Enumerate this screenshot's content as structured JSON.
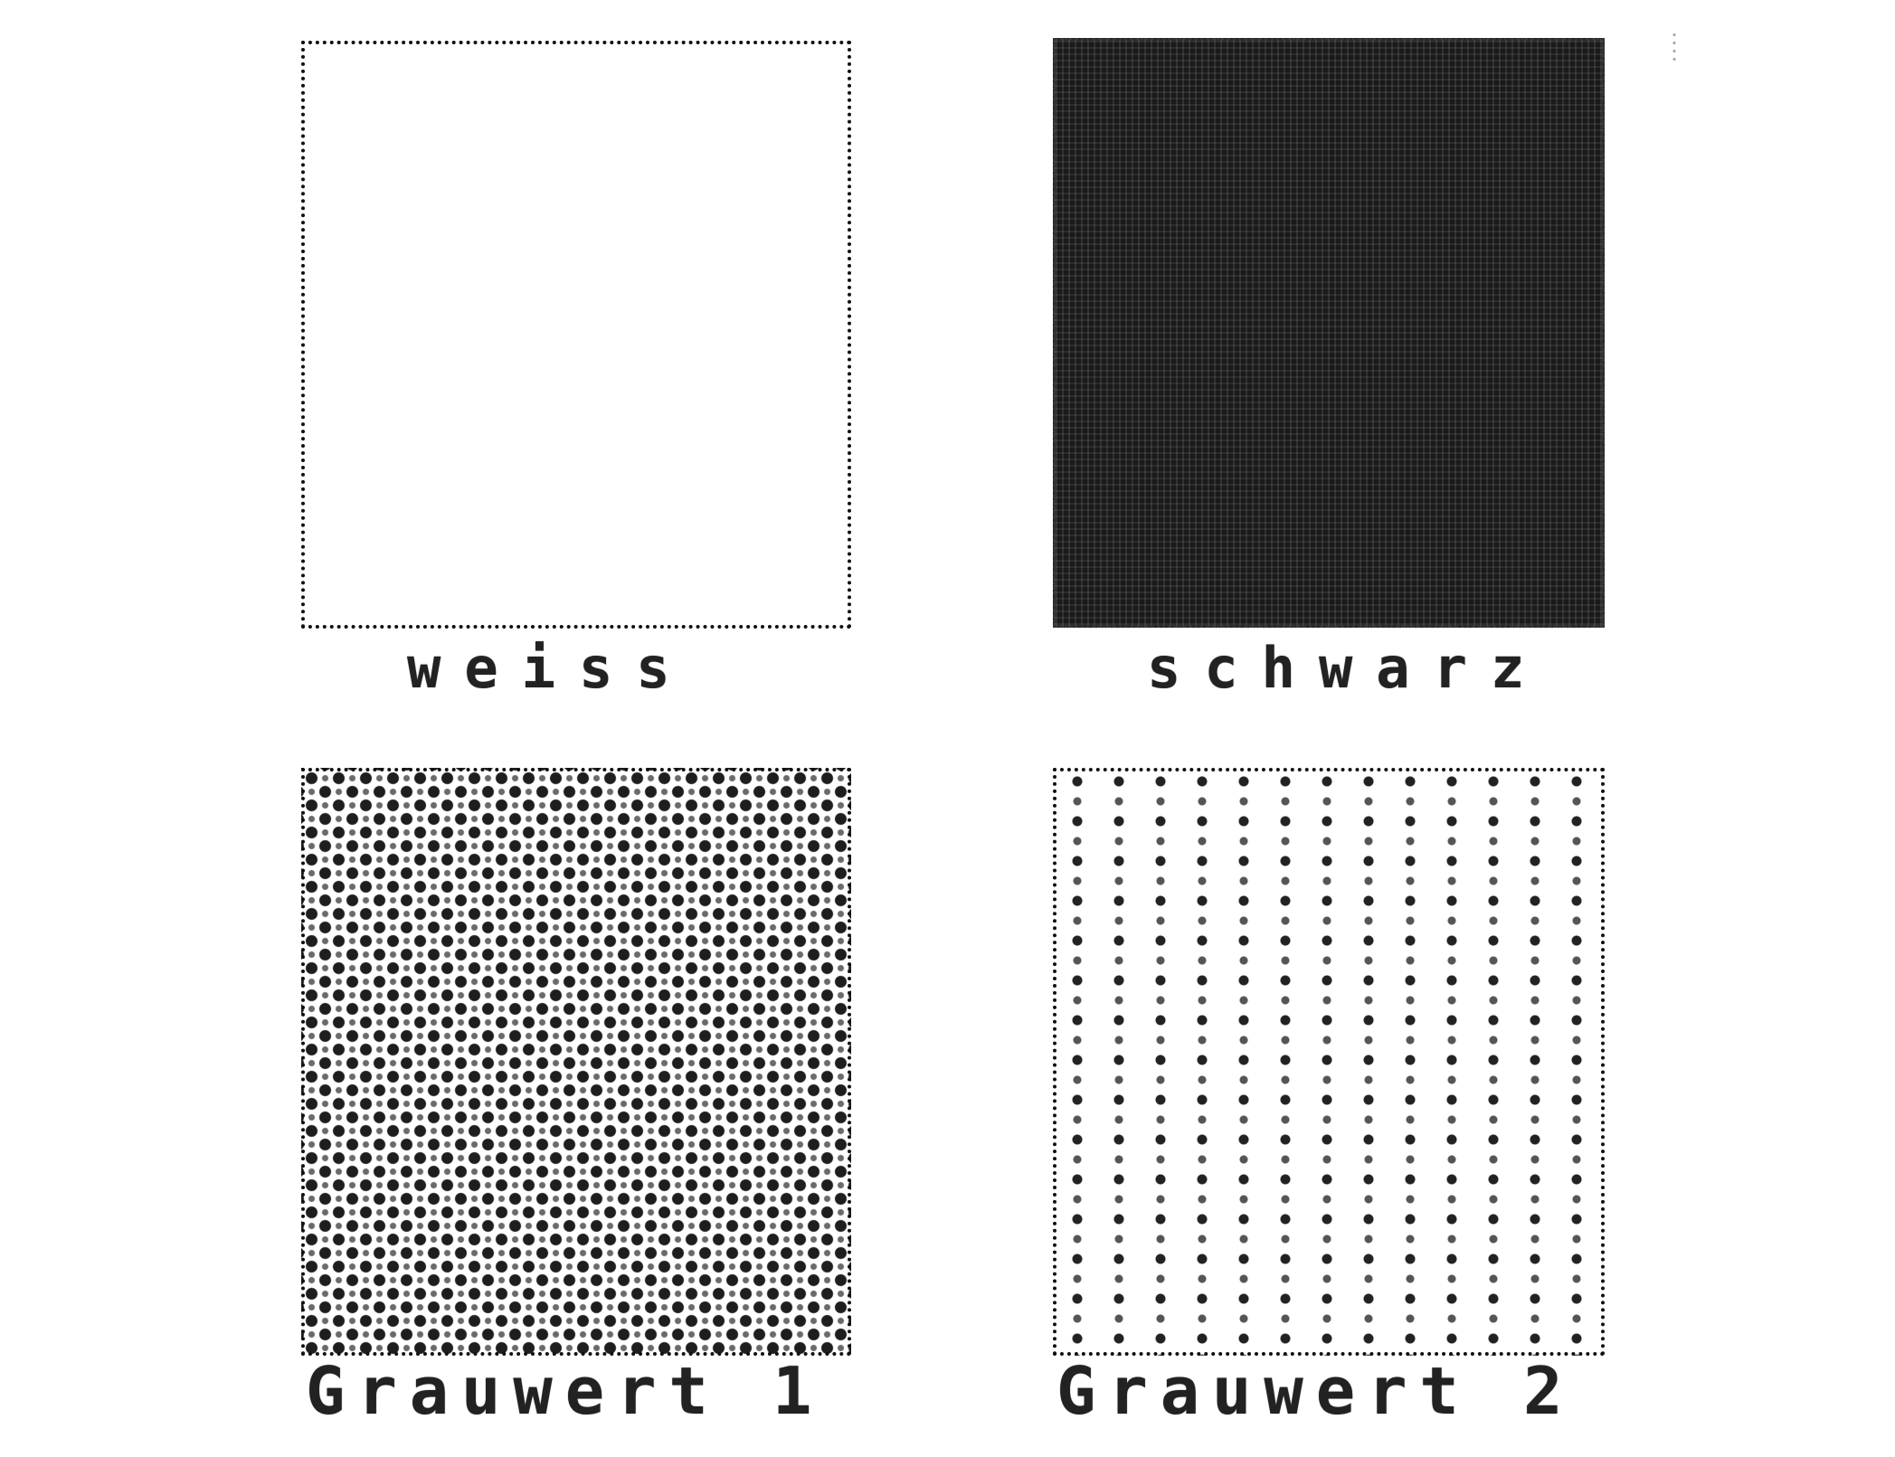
{
  "swatches": [
    {
      "id": "weiss",
      "label": "weiss",
      "fill": "#ffffff"
    },
    {
      "id": "schwarz",
      "label": "schwarz",
      "fill": "#1a1a1a"
    },
    {
      "id": "grauwert1",
      "label": "Grauwert 1",
      "fill": "checkerboard"
    },
    {
      "id": "grauwert2",
      "label": "Grauwert 2",
      "fill": "vertical-dot-columns"
    }
  ]
}
